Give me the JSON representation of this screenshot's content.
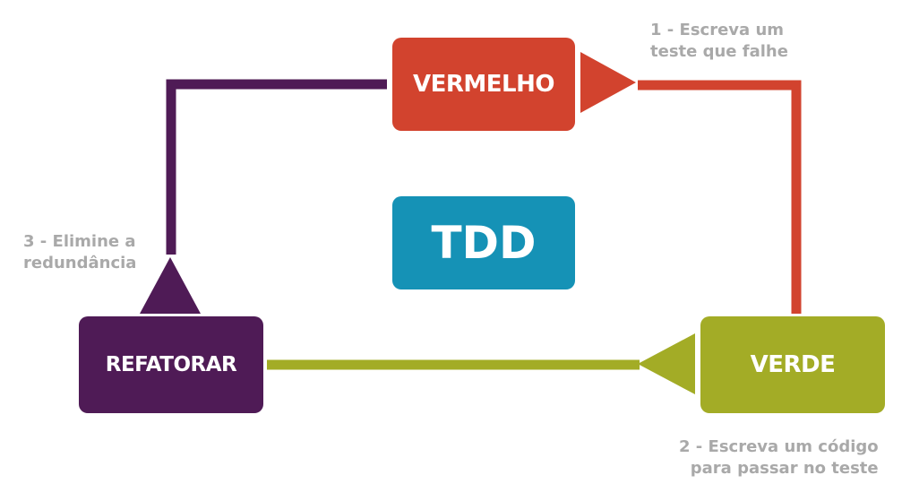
{
  "header": {
    "center_label": "TDD"
  },
  "nodes": [
    {
      "id": "red",
      "label": "VERMELHO",
      "color": "#d2432e"
    },
    {
      "id": "green",
      "label": "VERDE",
      "color": "#a3ac26"
    },
    {
      "id": "refactor",
      "label": "REFATORAR",
      "color": "#4f1b56"
    }
  ],
  "steps": [
    {
      "line1": "1 - Escreva um",
      "line2": "teste que falhe"
    },
    {
      "line1": "2 - Escreva um código",
      "line2": "para passar no teste"
    },
    {
      "line1": "3 - Elimine a",
      "line2": "redundância"
    }
  ],
  "colors": {
    "red": "#d2432e",
    "green": "#a3ac26",
    "purple": "#4f1b56",
    "blue": "#1592b6",
    "step_text": "#a9a9a9"
  }
}
